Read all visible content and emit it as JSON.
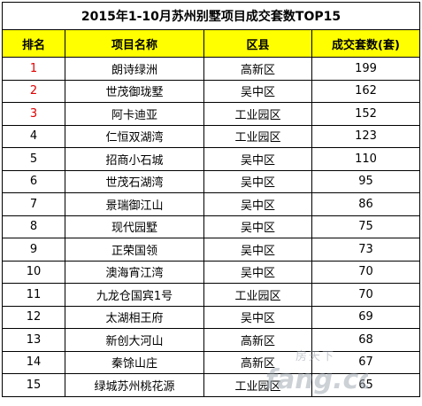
{
  "title": "2015年1-10月苏州别墅项目成交套数TOP15",
  "headers": [
    "排名",
    "项目名称",
    "区县",
    "成交套数(套)"
  ],
  "rows": [
    {
      "rank": "1",
      "name": "朗诗绿洲",
      "district": "高新区",
      "units": "199"
    },
    {
      "rank": "2",
      "name": "世茂御珑墅",
      "district": "吴中区",
      "units": "162"
    },
    {
      "rank": "3",
      "name": "阿卡迪亚",
      "district": "工业园区",
      "units": "152"
    },
    {
      "rank": "4",
      "name": "仁恒双湖湾",
      "district": "工业园区",
      "units": "123"
    },
    {
      "rank": "5",
      "name": "招商小石城",
      "district": "吴中区",
      "units": "110"
    },
    {
      "rank": "6",
      "name": "世茂石湖湾",
      "district": "吴中区",
      "units": "95"
    },
    {
      "rank": "7",
      "name": "景瑞御江山",
      "district": "吴中区",
      "units": "86"
    },
    {
      "rank": "8",
      "name": "现代园墅",
      "district": "吴中区",
      "units": "75"
    },
    {
      "rank": "9",
      "name": "正荣国领",
      "district": "吴中区",
      "units": "73"
    },
    {
      "rank": "10",
      "name": "澳海宵江湾",
      "district": "吴中区",
      "units": "70"
    },
    {
      "rank": "11",
      "name": "九龙仓国宾1号",
      "district": "工业园区",
      "units": "70"
    },
    {
      "rank": "12",
      "name": "太湖相王府",
      "district": "吴中区",
      "units": "69"
    },
    {
      "rank": "13",
      "name": "新创大河山",
      "district": "高新区",
      "units": "68"
    },
    {
      "rank": "14",
      "name": "秦馀山庄",
      "district": "高新区",
      "units": "67"
    },
    {
      "rank": "15",
      "name": "绿城苏州桃花源",
      "district": "工业园区",
      "units": "65"
    }
  ],
  "watermark": {
    "line1": "房天下",
    "line2": "fang.com"
  },
  "colors": {
    "header_bg": "#ffff00",
    "top3_rank": "#e00000",
    "border": "#000000"
  }
}
